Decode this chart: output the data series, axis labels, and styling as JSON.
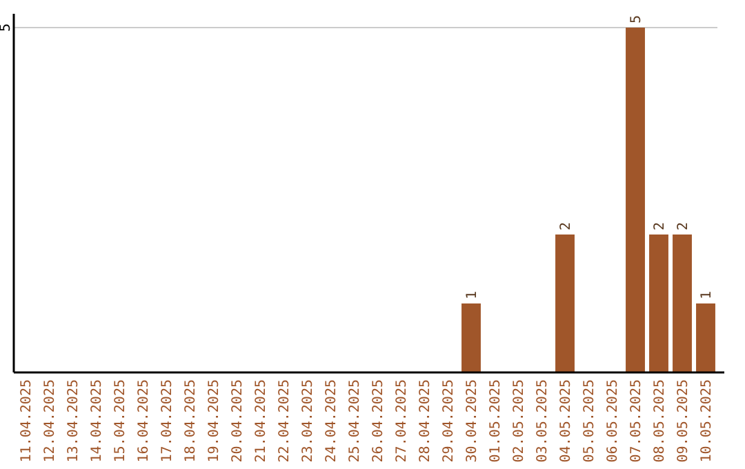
{
  "chart_data": {
    "type": "bar",
    "categories": [
      "11.04.2025",
      "12.04.2025",
      "13.04.2025",
      "14.04.2025",
      "15.04.2025",
      "16.04.2025",
      "17.04.2025",
      "18.04.2025",
      "19.04.2025",
      "20.04.2025",
      "21.04.2025",
      "22.04.2025",
      "23.04.2025",
      "24.04.2025",
      "25.04.2025",
      "26.04.2025",
      "27.04.2025",
      "28.04.2025",
      "29.04.2025",
      "30.04.2025",
      "01.05.2025",
      "02.05.2025",
      "03.05.2025",
      "04.05.2025",
      "05.05.2025",
      "06.05.2025",
      "07.05.2025",
      "08.05.2025",
      "09.05.2025",
      "10.05.2025"
    ],
    "values": [
      null,
      null,
      null,
      null,
      null,
      null,
      null,
      null,
      null,
      null,
      null,
      null,
      null,
      null,
      null,
      null,
      null,
      null,
      null,
      1,
      null,
      null,
      null,
      2,
      null,
      null,
      5,
      2,
      2,
      1
    ],
    "color": "#a0562a",
    "ylim": [
      0,
      5.2
    ],
    "yticks": [
      5
    ],
    "grid": "y",
    "data_labels": true
  }
}
